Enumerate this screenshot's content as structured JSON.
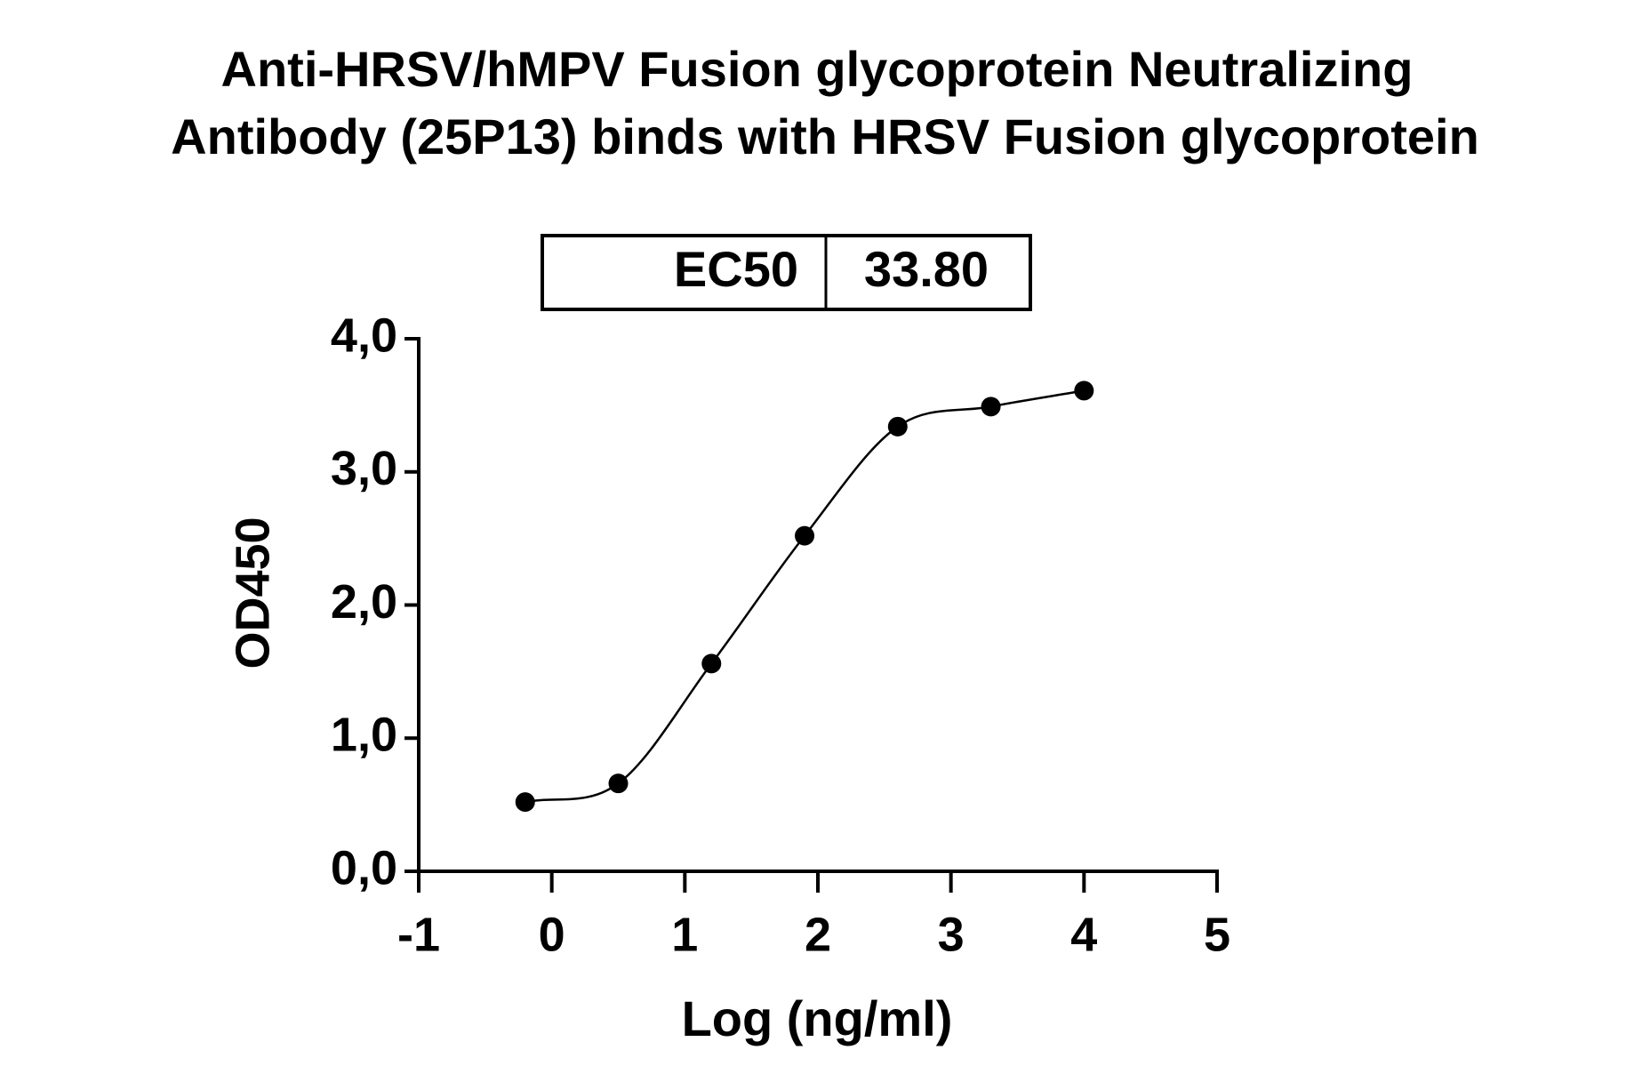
{
  "chart_data": {
    "type": "scatter",
    "title": [
      "Anti-HRSV/hMPV Fusion glycoprotein Neutralizing",
      "Antibody (25P13) binds with HRSV Fusion glycoprotein"
    ],
    "annotation": {
      "label": "EC50",
      "value": "33.80"
    },
    "x_label": "Log (ng/ml)",
    "y_label": "OD450",
    "x": [
      -0.2,
      0.5,
      1.2,
      1.9,
      2.6,
      3.3,
      4.0
    ],
    "values": [
      0.52,
      0.66,
      1.56,
      2.52,
      3.34,
      3.49,
      3.61
    ],
    "color": "#000000",
    "xlim": [
      -1,
      5
    ],
    "xticks": [
      -1,
      0,
      1,
      2,
      3,
      4,
      5
    ],
    "ylim": [
      0,
      4
    ],
    "yticks": [
      {
        "value": 0,
        "label": "0,0"
      },
      {
        "value": 1,
        "label": "1,0"
      },
      {
        "value": 2,
        "label": "2,0"
      },
      {
        "value": 3,
        "label": "3,0"
      },
      {
        "value": 4,
        "label": "4,0"
      }
    ],
    "grid": false
  }
}
